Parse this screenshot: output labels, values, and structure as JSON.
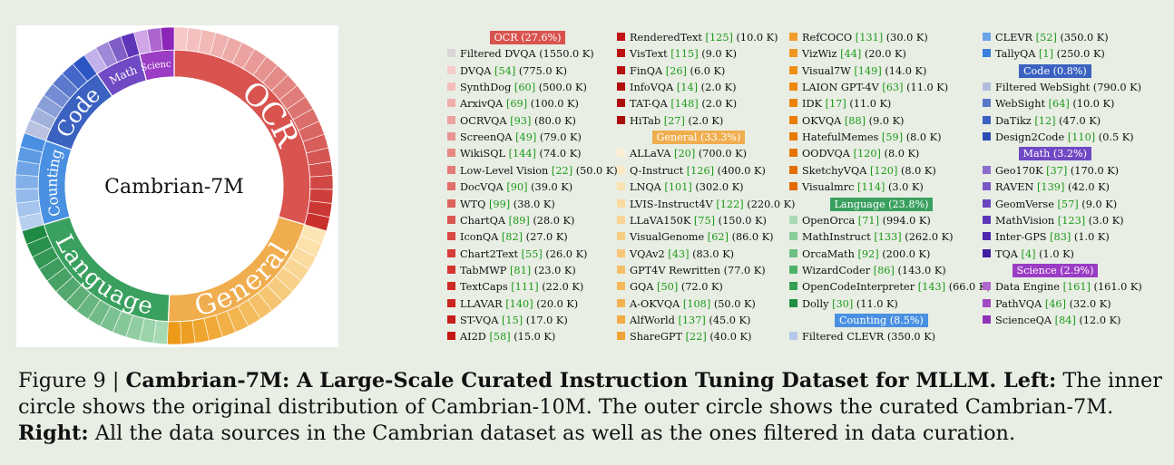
{
  "center_label": "Cambrian-7M",
  "chart_data": {
    "type": "sunburst",
    "center": "Cambrian-7M",
    "inner_ring_label": "Cambrian-10M",
    "outer_ring_label": "Cambrian-7M",
    "categories": [
      {
        "name": "OCR",
        "share": "27.6%",
        "color": "#d9534f",
        "ring_fraction": 0.296,
        "light": "#f6c8c6",
        "dark": "#c9302c"
      },
      {
        "name": "General",
        "share": "33.3%",
        "color": "#f0ad4e",
        "ring_fraction": 0.211,
        "light": "#fde6b5",
        "dark": "#ec9a18"
      },
      {
        "name": "Language",
        "share": "23.8%",
        "color": "#3aa05f",
        "ring_fraction": 0.197,
        "light": "#a5d9b3",
        "dark": "#1f8a44"
      },
      {
        "name": "Counting",
        "share": "8.5%",
        "color": "#4a90e2",
        "ring_fraction": 0.1,
        "light": "#b8cff0",
        "dark": "#4a90e2"
      },
      {
        "name": "Code",
        "share": "0.8%",
        "color": "#3b62c0",
        "ring_fraction": 0.1,
        "light": "#b9c3e1",
        "dark": "#2c55c4"
      },
      {
        "name": "Math",
        "share": "3.2%",
        "color": "#7049c4",
        "ring_fraction": 0.055,
        "light": "#c2b1e8",
        "dark": "#5d35b8"
      },
      {
        "name": "Science",
        "share": "2.9%",
        "color": "#9b3cc4",
        "ring_fraction": 0.041,
        "light": "#d0a6e6",
        "dark": "#8a25b8"
      }
    ],
    "ring_labels": [
      "OCR",
      "General",
      "Language",
      "Counting",
      "Code",
      "Math",
      "Science"
    ],
    "legend_columns": [
      [
        {
          "header": "OCR (27.6%)",
          "color": "#d9534f"
        },
        {
          "name": "Filtered DVQA",
          "cite": "",
          "size": "(1550.0 K)",
          "color": "#dcd3da"
        },
        {
          "name": "DVQA",
          "cite": "[54]",
          "size": "(775.0 K)",
          "color": "#f5cbc9"
        },
        {
          "name": "SynthDog",
          "cite": "[60]",
          "size": "(500.0 K)",
          "color": "#f2bdba"
        },
        {
          "name": "ArxivQA",
          "cite": "[69]",
          "size": "(100.0 K)",
          "color": "#efb0ac"
        },
        {
          "name": "OCRVQA",
          "cite": "[93]",
          "size": "(80.0 K)",
          "color": "#eca29e"
        },
        {
          "name": "ScreenQA",
          "cite": "[49]",
          "size": "(79.0 K)",
          "color": "#e99591"
        },
        {
          "name": "WikiSQL",
          "cite": "[144]",
          "size": "(74.0 K)",
          "color": "#e68883"
        },
        {
          "name": "Low-Level Vision",
          "cite": "[22]",
          "size": "(50.0 K)",
          "color": "#e37b76"
        },
        {
          "name": "DocVQA",
          "cite": "[90]",
          "size": "(39.0 K)",
          "color": "#e06e69"
        },
        {
          "name": "WTQ",
          "cite": "[99]",
          "size": "(38.0 K)",
          "color": "#dd625d"
        },
        {
          "name": "ChartQA",
          "cite": "[89]",
          "size": "(28.0 K)",
          "color": "#da5651"
        },
        {
          "name": "IconQA",
          "cite": "[82]",
          "size": "(27.0 K)",
          "color": "#d84a45"
        },
        {
          "name": "Chart2Text",
          "cite": "[55]",
          "size": "(26.0 K)",
          "color": "#d63f3a"
        },
        {
          "name": "TabMWP",
          "cite": "[81]",
          "size": "(23.0 K)",
          "color": "#d3342f"
        },
        {
          "name": "TextCaps",
          "cite": "[111]",
          "size": "(22.0 K)",
          "color": "#cf2b27"
        },
        {
          "name": "LLAVAR",
          "cite": "[140]",
          "size": "(20.0 K)",
          "color": "#cb2320"
        },
        {
          "name": "ST-VQA",
          "cite": "[15]",
          "size": "(17.0 K)",
          "color": "#c71d1b"
        },
        {
          "name": "AI2D",
          "cite": "[58]",
          "size": "(15.0 K)",
          "color": "#c31816"
        }
      ],
      [
        {
          "name": "RenderedText",
          "cite": "[125]",
          "size": "(10.0 K)",
          "color": "#bf1414"
        },
        {
          "name": "VisText",
          "cite": "[115]",
          "size": "(9.0 K)",
          "color": "#bb1212"
        },
        {
          "name": "FinQA",
          "cite": "[26]",
          "size": "(6.0 K)",
          "color": "#b71010"
        },
        {
          "name": "InfoVQA",
          "cite": "[14]",
          "size": "(2.0 K)",
          "color": "#b30e0e"
        },
        {
          "name": "TAT-QA",
          "cite": "[148]",
          "size": "(2.0 K)",
          "color": "#ae0c0c"
        },
        {
          "name": "HiTab",
          "cite": "[27]",
          "size": "(2.0 K)",
          "color": "#aa0a0a"
        },
        {
          "header": "General (33.3%)",
          "color": "#f0ad4e"
        },
        {
          "name": "ALLaVA",
          "cite": "[20]",
          "size": "(700.0 K)",
          "color": "#fdf0d2"
        },
        {
          "name": "Q-Instruct",
          "cite": "[126]",
          "size": "(400.0 K)",
          "color": "#fce9c2"
        },
        {
          "name": "LNQA",
          "cite": "[101]",
          "size": "(302.0 K)",
          "color": "#fbe2b2"
        },
        {
          "name": "LVIS-Instruct4V",
          "cite": "[122]",
          "size": "(220.0 K)",
          "color": "#fadba2"
        },
        {
          "name": "LLaVA150K",
          "cite": "[75]",
          "size": "(150.0 K)",
          "color": "#f9d493"
        },
        {
          "name": "VisualGenome",
          "cite": "[62]",
          "size": "(86.0 K)",
          "color": "#f8cd84"
        },
        {
          "name": "VQAv2",
          "cite": "[43]",
          "size": "(83.0 K)",
          "color": "#f7c676"
        },
        {
          "name": "GPT4V Rewritten",
          "cite": "",
          "size": "(77.0 K)",
          "color": "#f6bf68"
        },
        {
          "name": "GQA",
          "cite": "[50]",
          "size": "(72.0 K)",
          "color": "#f5b85b"
        },
        {
          "name": "A-OKVQA",
          "cite": "[108]",
          "size": "(50.0 K)",
          "color": "#f4b14f"
        },
        {
          "name": "AlfWorld",
          "cite": "[137]",
          "size": "(45.0 K)",
          "color": "#f3aa43"
        },
        {
          "name": "ShareGPT",
          "cite": "[22]",
          "size": "(40.0 K)",
          "color": "#f2a337"
        }
      ],
      [
        {
          "name": "RefCOCO",
          "cite": "[131]",
          "size": "(30.0 K)",
          "color": "#f19c2c"
        },
        {
          "name": "VizWiz",
          "cite": "[44]",
          "size": "(20.0 K)",
          "color": "#f09522"
        },
        {
          "name": "Visual7W",
          "cite": "[149]",
          "size": "(14.0 K)",
          "color": "#ef8f18"
        },
        {
          "name": "LAION GPT-4V",
          "cite": "[63]",
          "size": "(11.0 K)",
          "color": "#ee8910"
        },
        {
          "name": "IDK",
          "cite": "[17]",
          "size": "(11.0 K)",
          "color": "#ec8309"
        },
        {
          "name": "OKVQA",
          "cite": "[88]",
          "size": "(9.0 K)",
          "color": "#ea7e05"
        },
        {
          "name": "HatefulMemes",
          "cite": "[59]",
          "size": "(8.0 K)",
          "color": "#e87903"
        },
        {
          "name": "OODVQA",
          "cite": "[120]",
          "size": "(8.0 K)",
          "color": "#e67402"
        },
        {
          "name": "SketchyVQA",
          "cite": "[120]",
          "size": "(8.0 K)",
          "color": "#e46f01"
        },
        {
          "name": "Visualmrc",
          "cite": "[114]",
          "size": "(3.0 K)",
          "color": "#e26a00"
        },
        {
          "header": "Language (23.8%)",
          "color": "#3aa05f"
        },
        {
          "name": "OpenOrca",
          "cite": "[71]",
          "size": "(994.0 K)",
          "color": "#a8dbb5"
        },
        {
          "name": "MathInstruct",
          "cite": "[133]",
          "size": "(262.0 K)",
          "color": "#8acd9b"
        },
        {
          "name": "OrcaMath",
          "cite": "[92]",
          "size": "(200.0 K)",
          "color": "#6cbf82"
        },
        {
          "name": "WizardCoder",
          "cite": "[86]",
          "size": "(143.0 K)",
          "color": "#4eb16a"
        },
        {
          "name": "OpenCodeInterpreter",
          "cite": "[143]",
          "size": "(66.0 K)",
          "color": "#35a055"
        },
        {
          "name": "Dolly",
          "cite": "[30]",
          "size": "(11.0 K)",
          "color": "#1f8f43"
        },
        {
          "header": "Counting (8.5%)",
          "color": "#4a90e2"
        },
        {
          "name": "Filtered CLEVR",
          "cite": "",
          "size": "(350.0 K)",
          "color": "#b6c8ea"
        }
      ],
      [
        {
          "name": "CLEVR",
          "cite": "[52]",
          "size": "(350.0 K)",
          "color": "#6aa3e8"
        },
        {
          "name": "TallyQA",
          "cite": "[1]",
          "size": "(250.0 K)",
          "color": "#3a80dc"
        },
        {
          "header": "Code (0.8%)",
          "color": "#3b62c0"
        },
        {
          "name": "Filtered WebSight",
          "cite": "",
          "size": "(790.0 K)",
          "color": "#b2bcdf"
        },
        {
          "name": "WebSight",
          "cite": "[64]",
          "size": "(10.0 K)",
          "color": "#5a78c8"
        },
        {
          "name": "DaTikz",
          "cite": "[12]",
          "size": "(47.0 K)",
          "color": "#3d5fbf"
        },
        {
          "name": "Design2Code",
          "cite": "[110]",
          "size": "(0.5 K)",
          "color": "#2a4cb5"
        },
        {
          "header": "Math (3.2%)",
          "color": "#7049c4"
        },
        {
          "name": "Geo170K",
          "cite": "[37]",
          "size": "(170.0 K)",
          "color": "#8a6ccc"
        },
        {
          "name": "RAVEN",
          "cite": "[139]",
          "size": "(42.0 K)",
          "color": "#7a58c6"
        },
        {
          "name": "GeomVerse",
          "cite": "[57]",
          "size": "(9.0 K)",
          "color": "#6a46c0"
        },
        {
          "name": "MathVision",
          "cite": "[123]",
          "size": "(3.0 K)",
          "color": "#5b36b8"
        },
        {
          "name": "Inter-GPS",
          "cite": "[83]",
          "size": "(1.0 K)",
          "color": "#4d29ad"
        },
        {
          "name": "TQA",
          "cite": "[4]",
          "size": "(1.0 K)",
          "color": "#401ea3"
        },
        {
          "header": "Science (2.9%)",
          "color": "#9b3cc4"
        },
        {
          "name": "Data Engine",
          "cite": "[161]",
          "size": "(161.0 K)",
          "color": "#b066cf",
          "cite_alt": "(161.0 K)"
        },
        {
          "name": "PathVQA",
          "cite": "[46]",
          "size": "(32.0 K)",
          "color": "#a24ac6"
        },
        {
          "name": "ScienceQA",
          "cite": "[84]",
          "size": "(12.0 K)",
          "color": "#9032b8"
        }
      ]
    ]
  },
  "caption": {
    "figure": "Figure 9 | ",
    "title": "Cambrian-7M: A Large-Scale Curated Instruction Tuning Dataset for MLLM.",
    "left_label": " Left:",
    "left_text": " The inner circle shows the original distribution of Cambrian-10M. The outer circle shows the curated Cambrian-7M.",
    "right_label": "Right:",
    "right_text": " All the data sources in the Cambrian dataset as well as the ones filtered in data curation."
  }
}
